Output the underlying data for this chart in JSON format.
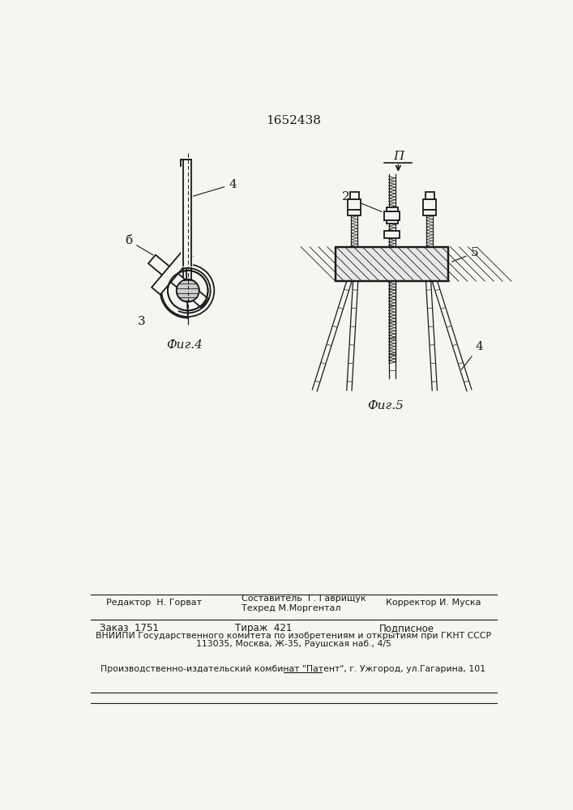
{
  "patent_number": "1652438",
  "bg_color": "#f5f5f2",
  "line_color": "#1a1a1a",
  "fig4_label": "Фиг.4",
  "fig5_label": "Фиг.5",
  "label_П": "П",
  "label_2": "2",
  "label_3": "3",
  "label_4": "4",
  "label_5": "5",
  "label_6": "б"
}
